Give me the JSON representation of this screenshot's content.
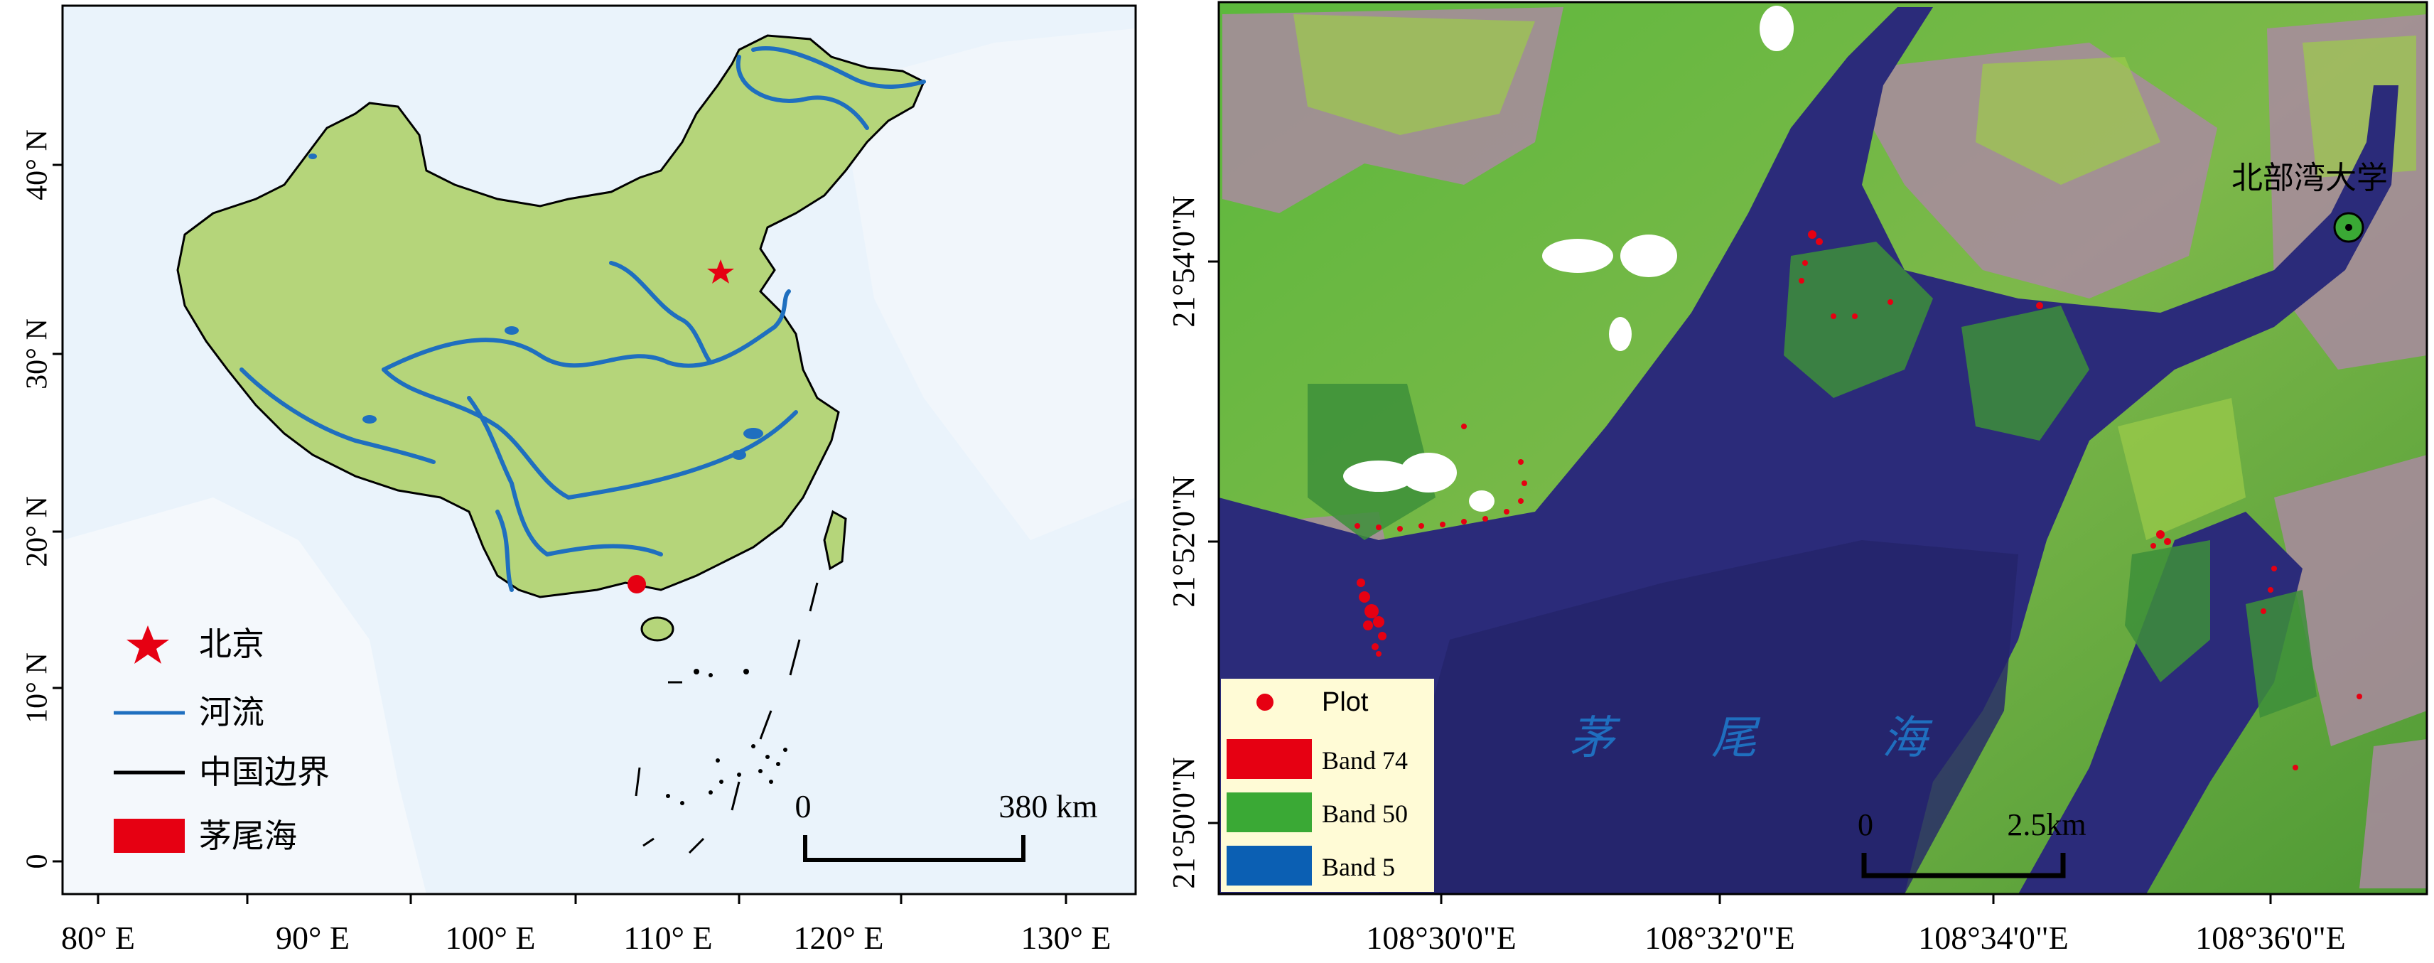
{
  "left_map": {
    "y_ticks": [
      "0",
      "10° N",
      "20° N",
      "30° N",
      "40° N"
    ],
    "x_ticks": [
      "80° E",
      "90° E",
      "100° E",
      "110° E",
      "120° E",
      "130° E"
    ],
    "legend": {
      "beijing": "北京",
      "river": "河流",
      "border": "中国边界",
      "maowei_sea": "茅尾海"
    },
    "scalebar": {
      "start": "0",
      "end": "380 km"
    },
    "colors": {
      "land": "#b5d57a",
      "river": "#1f6fbf",
      "sea": "#e8f2fb",
      "marker": "#e60012"
    }
  },
  "right_map": {
    "y_ticks": [
      "21°54'0\"N",
      "21°52'0\"N",
      "21°50'0\"N"
    ],
    "x_ticks": [
      "108°30'0\"E",
      "108°32'0\"E",
      "108°34'0\"E",
      "108°36'0\"E"
    ],
    "university_label": "北部湾大学",
    "sea_label": [
      "茅",
      "尾",
      "海"
    ],
    "legend": {
      "plot": "Plot",
      "band_red": "Band 74",
      "band_green": "Band 50",
      "band_blue": "Band 5"
    },
    "scalebar": {
      "start": "0",
      "end": "2.5km"
    },
    "colors": {
      "water": "#2a2a78",
      "vegetation": "#4caf32",
      "legend_bg": "#fffbd6",
      "red": "#e60012",
      "green": "#3aa935",
      "blue": "#0b5fb3"
    }
  }
}
